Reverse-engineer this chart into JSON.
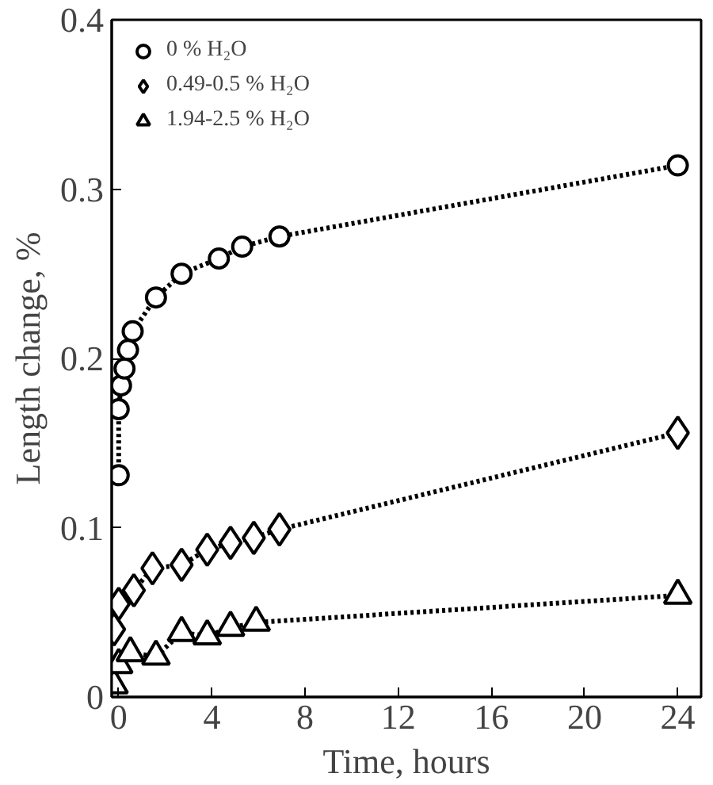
{
  "chart_data": {
    "type": "line",
    "xlabel": "Time, hours",
    "ylabel": "Length change, %",
    "xlim": [
      -0.3,
      25
    ],
    "ylim": [
      0,
      0.4
    ],
    "xticks": [
      0,
      4,
      8,
      12,
      16,
      20,
      24
    ],
    "yticks": [
      0,
      0.1,
      0.2,
      0.3,
      0.4
    ],
    "grid": false,
    "legend": "top left",
    "line_style": "dotted",
    "series": [
      {
        "name": "0 % H₂O",
        "color": "#000000",
        "marker": "circle",
        "x": [
          0,
          0,
          0.1,
          0.25,
          0.4,
          0.6,
          1.6,
          2.7,
          4.3,
          5.3,
          6.9,
          24
        ],
        "values": [
          0.131,
          0.17,
          0.184,
          0.194,
          0.205,
          0.216,
          0.236,
          0.25,
          0.259,
          0.266,
          0.272,
          0.314
        ]
      },
      {
        "name": "0.49-0.5 % H₂O",
        "color": "#000000",
        "marker": "diamond",
        "x": [
          -0.2,
          0,
          0.65,
          1.45,
          2.7,
          3.8,
          4.8,
          5.8,
          6.9,
          24
        ],
        "values": [
          0.04,
          0.055,
          0.063,
          0.076,
          0.078,
          0.087,
          0.091,
          0.094,
          0.099,
          0.156
        ]
      },
      {
        "name": "1.94-2.5 % H₂O",
        "color": "#000000",
        "marker": "triangle",
        "x": [
          -0.2,
          0,
          0.5,
          1.6,
          2.7,
          3.8,
          4.8,
          5.9,
          24
        ],
        "values": [
          0.007,
          0.019,
          0.026,
          0.024,
          0.038,
          0.036,
          0.041,
          0.044,
          0.06
        ]
      }
    ]
  }
}
